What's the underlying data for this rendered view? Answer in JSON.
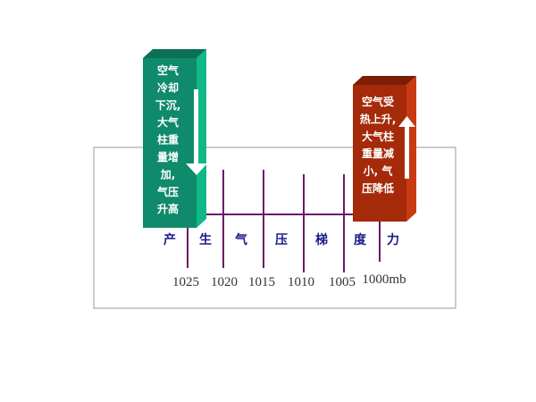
{
  "colors": {
    "high_pressure_block": "#0f8a6a",
    "low_pressure_block": "#a52a0a",
    "isobar_line": "#6a1a6a",
    "label_text": "#1a1a8a",
    "frame": "#bbbbbb"
  },
  "high_block": {
    "lines": [
      "空气",
      "冷却",
      "下沉,",
      "大气",
      "柱重",
      "量增",
      "加,",
      "气压",
      "升高"
    ],
    "arrow": "down-arrow"
  },
  "low_block": {
    "lines": [
      "空气受",
      "热上升,",
      "大气柱",
      "重量减",
      "小, 气",
      "压降低"
    ],
    "arrow": "up-arrow"
  },
  "force_label": [
    "产",
    "生",
    "气",
    "压",
    "梯",
    "度",
    "力"
  ],
  "isobars": [
    "1025",
    "1020",
    "1015",
    "1010",
    "1005",
    "1000mb"
  ]
}
